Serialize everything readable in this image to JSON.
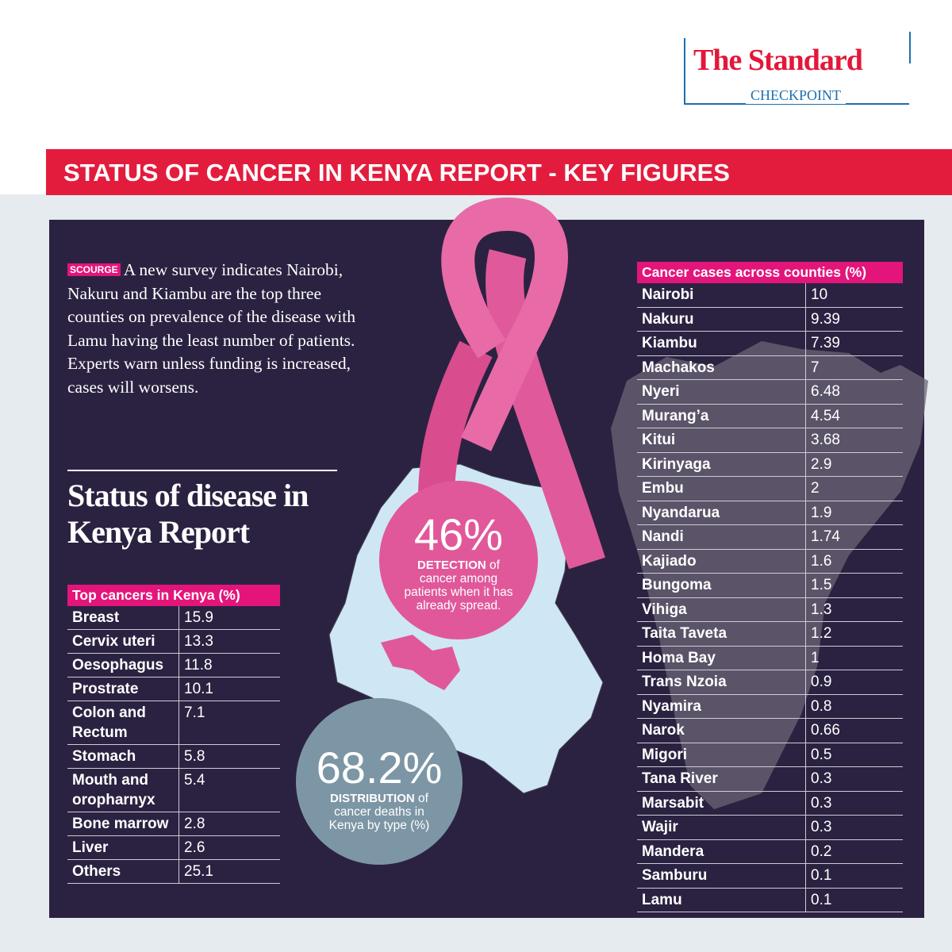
{
  "header": {
    "brand_first": "The",
    "brand_second": "Standard",
    "sub": "CHECKPOINT"
  },
  "title": "STATUS OF CANCER IN KENYA REPORT - KEY FIGURES",
  "intro": {
    "tag": "SCOURGE",
    "text": "A new survey indicates Nairobi, Nakuru and Kiambu are the top three counties on prevalence of the disease with Lamu having the least number of patients. Experts warn unless funding is increased, cases will worsens."
  },
  "heading": "Status of disease in Kenya Report",
  "stats": [
    {
      "value": "46%",
      "label": "DETECTION",
      "text": "of cancer among patients when it has already spread."
    },
    {
      "value": "68.2%",
      "label": "DISTRIBUTION",
      "text": "of cancer deaths in Kenya by type (%)"
    }
  ],
  "top_cancers": {
    "title": "Top cancers in Kenya (%)",
    "rows": [
      [
        "Breast",
        15.9
      ],
      [
        "Cervix uteri",
        13.3
      ],
      [
        "Oesophagus",
        11.8
      ],
      [
        "Prostrate",
        10.1
      ],
      [
        "Colon and Rectum",
        7.1
      ],
      [
        "Stomach",
        5.8
      ],
      [
        "Mouth and oropharnyx",
        5.4
      ],
      [
        "Bone marrow",
        2.8
      ],
      [
        "Liver",
        2.6
      ],
      [
        "Others",
        25.1
      ]
    ]
  },
  "counties": {
    "title": "Cancer cases across counties (%)",
    "rows": [
      [
        "Nairobi",
        10
      ],
      [
        "Nakuru",
        9.39
      ],
      [
        "Kiambu",
        7.39
      ],
      [
        "Machakos",
        7
      ],
      [
        "Nyeri",
        6.48
      ],
      [
        "Murang’a",
        4.54
      ],
      [
        "Kitui",
        3.68
      ],
      [
        "Kirinyaga",
        2.9
      ],
      [
        "Embu",
        2
      ],
      [
        "Nyandarua",
        1.9
      ],
      [
        "Nandi",
        1.74
      ],
      [
        "Kajiado",
        1.6
      ],
      [
        "Bungoma",
        1.5
      ],
      [
        "Vihiga",
        1.3
      ],
      [
        "Taita Taveta",
        1.2
      ],
      [
        "Homa Bay",
        1
      ],
      [
        "Trans Nzoia",
        0.9
      ],
      [
        "Nyamira",
        0.8
      ],
      [
        "Narok",
        0.66
      ],
      [
        "Migori",
        0.5
      ],
      [
        "Tana River",
        0.3
      ],
      [
        "Marsabit",
        0.3
      ],
      [
        "Wajir",
        0.3
      ],
      [
        "Mandera",
        0.2
      ],
      [
        "Samburu",
        0.1
      ],
      [
        "Lamu",
        0.1
      ]
    ]
  }
}
